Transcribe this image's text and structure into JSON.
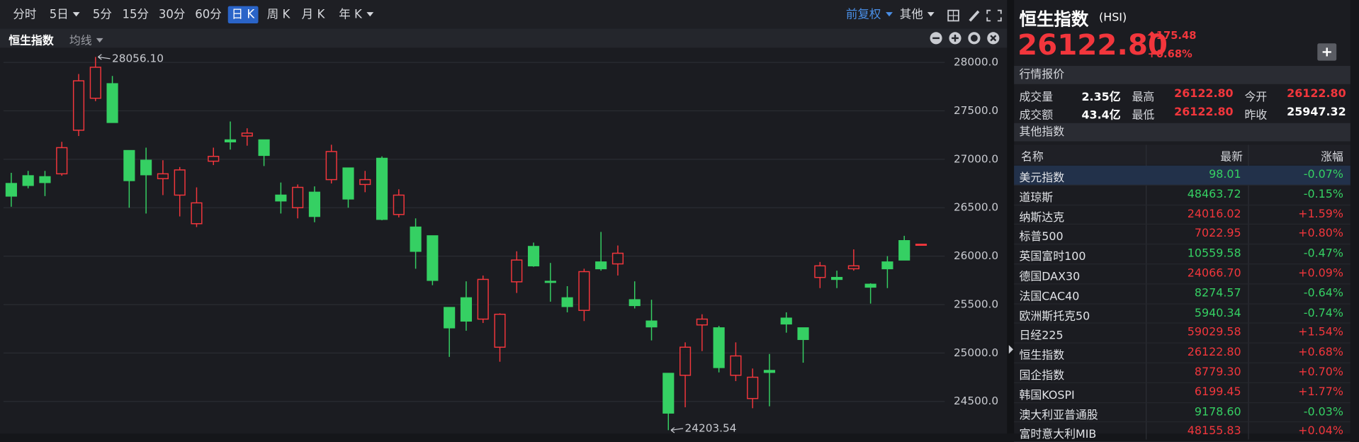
{
  "toolbar": {
    "periods": [
      {
        "label": "分时"
      },
      {
        "label": "5日",
        "dropdown": true
      },
      {
        "label": "5分"
      },
      {
        "label": "15分"
      },
      {
        "label": "30分"
      },
      {
        "label": "60分"
      },
      {
        "label": "日 K",
        "selected": true
      },
      {
        "label": "周 K"
      },
      {
        "label": "月 K"
      },
      {
        "label": "年 K",
        "dropdown": true
      }
    ],
    "adjust": {
      "label": "前复权",
      "dropdown": true
    },
    "more": {
      "label": "其他",
      "dropdown": true
    }
  },
  "chart_data": {
    "type": "candlestick",
    "title": "恒生指数",
    "indicator": "均线",
    "up_color": "#f2363c",
    "down_color": "#35d063",
    "grid": true,
    "max_label": "28056.10",
    "min_label": "24203.54",
    "ylim": [
      24196,
      28134
    ],
    "yticks": [
      {
        "value": 24500,
        "label": "24500.0"
      },
      {
        "value": 25000,
        "label": "25000.0"
      },
      {
        "value": 25500,
        "label": "25500.0"
      },
      {
        "value": 26000,
        "label": "26000.0"
      },
      {
        "value": 26500,
        "label": "26500.0"
      },
      {
        "value": 27000,
        "label": "27000.0"
      },
      {
        "value": 27500,
        "label": "27500.0"
      },
      {
        "value": 28000,
        "label": "28000.0"
      }
    ],
    "open": [
      26750,
      26830,
      26820,
      26850,
      27300,
      27630,
      27780,
      27090,
      26990,
      26800,
      26630,
      26335,
      26980,
      27200,
      27240,
      27200,
      26630,
      26500,
      26660,
      26790,
      26910,
      26740,
      27010,
      26430,
      26300,
      26210,
      25470,
      25570,
      25350,
      25060,
      25735,
      26100,
      25740,
      25570,
      25440,
      25940,
      25920,
      25550,
      25330,
      24790,
      24770,
      25290,
      25260,
      24770,
      24530,
      24820,
      25360,
      25260,
      25780,
      25780,
      25870,
      25710,
      25940,
      26160,
      26122.8
    ],
    "high": [
      26860,
      26880,
      26880,
      27180,
      27880,
      28056.1,
      27860,
      27090,
      27120,
      26990,
      26920,
      26710,
      27120,
      27390,
      27320,
      27200,
      26760,
      26740,
      26720,
      27150,
      26910,
      26880,
      27030,
      26690,
      26390,
      26210,
      25470,
      25740,
      25800,
      25410,
      26050,
      26140,
      25930,
      25690,
      25870,
      26250,
      26110,
      25740,
      25550,
      24790,
      25110,
      25400,
      25280,
      25110,
      24840,
      24990,
      25420,
      25260,
      25940,
      25850,
      26070,
      25720,
      26000,
      26210,
      26122.8
    ],
    "low": [
      26510,
      26700,
      26620,
      26830,
      27240,
      27600,
      27380,
      26500,
      26440,
      26630,
      26410,
      26300,
      26940,
      27100,
      27140,
      26930,
      26440,
      26390,
      26350,
      26750,
      26500,
      26660,
      26370,
      26400,
      25870,
      25700,
      24960,
      25230,
      25310,
      24910,
      25620,
      25890,
      25530,
      25420,
      25330,
      25850,
      25800,
      25460,
      25130,
      24203.54,
      24440,
      25020,
      24800,
      24710,
      24430,
      24450,
      25210,
      24900,
      25670,
      25670,
      25850,
      25510,
      25670,
      25960,
      26122.8
    ],
    "close": [
      26620,
      26730,
      26760,
      27120,
      27810,
      27950,
      27380,
      26780,
      26840,
      26850,
      26890,
      26550,
      27030,
      27180,
      27270,
      27040,
      26570,
      26710,
      26410,
      27080,
      26590,
      26790,
      26380,
      26630,
      26050,
      25750,
      25260,
      25330,
      25760,
      25400,
      25960,
      25900,
      25730,
      25480,
      25840,
      25870,
      26030,
      25490,
      25270,
      24380,
      25060,
      25350,
      24850,
      24970,
      24750,
      24800,
      25300,
      25140,
      25900,
      25760,
      25900,
      25680,
      25870,
      25960,
      26122.8
    ]
  },
  "quote": {
    "name": "恒生指数",
    "code": "(HSI)",
    "price": "26122.80",
    "change": "175.48",
    "change_pct": "+0.68%",
    "section": "行情报价",
    "cells": [
      [
        {
          "label": "成交量",
          "value": "2.35亿"
        },
        {
          "label": "最高",
          "value": "26122.80",
          "color": "#f2363c"
        },
        {
          "label": "今开",
          "value": "26122.80",
          "color": "#f2363c"
        }
      ],
      [
        {
          "label": "成交额",
          "value": "43.4亿"
        },
        {
          "label": "最低",
          "value": "26122.80",
          "color": "#f2363c"
        },
        {
          "label": "昨收",
          "value": "25947.32"
        }
      ]
    ]
  },
  "other_indices": {
    "title": "其他指数",
    "columns": [
      "名称",
      "最新",
      "涨幅"
    ],
    "rows": [
      {
        "name": "美元指数",
        "latest": "98.01",
        "change": "-0.07%",
        "selected": true
      },
      {
        "name": "道琼斯",
        "latest": "48463.72",
        "change": "-0.15%"
      },
      {
        "name": "纳斯达克",
        "latest": "24016.02",
        "change": "+1.59%"
      },
      {
        "name": "标普500",
        "latest": "7022.95",
        "change": "+0.80%"
      },
      {
        "name": "英国富时100",
        "latest": "10559.58",
        "change": "-0.47%"
      },
      {
        "name": "德国DAX30",
        "latest": "24066.70",
        "change": "+0.09%"
      },
      {
        "name": "法国CAC40",
        "latest": "8274.57",
        "change": "-0.64%"
      },
      {
        "name": "欧洲斯托克50",
        "latest": "5940.34",
        "change": "-0.74%"
      },
      {
        "name": "日经225",
        "latest": "59029.58",
        "change": "+1.54%"
      },
      {
        "name": "恒生指数",
        "latest": "26122.80",
        "change": "+0.68%"
      },
      {
        "name": "国企指数",
        "latest": "8779.30",
        "change": "+0.70%"
      },
      {
        "name": "韩国KOSPI",
        "latest": "6199.45",
        "change": "+1.77%"
      },
      {
        "name": "澳大利亚普通股",
        "latest": "9178.60",
        "change": "-0.03%"
      },
      {
        "name": "富时意大利MIB",
        "latest": "48155.83",
        "change": "+0.04%"
      }
    ]
  }
}
